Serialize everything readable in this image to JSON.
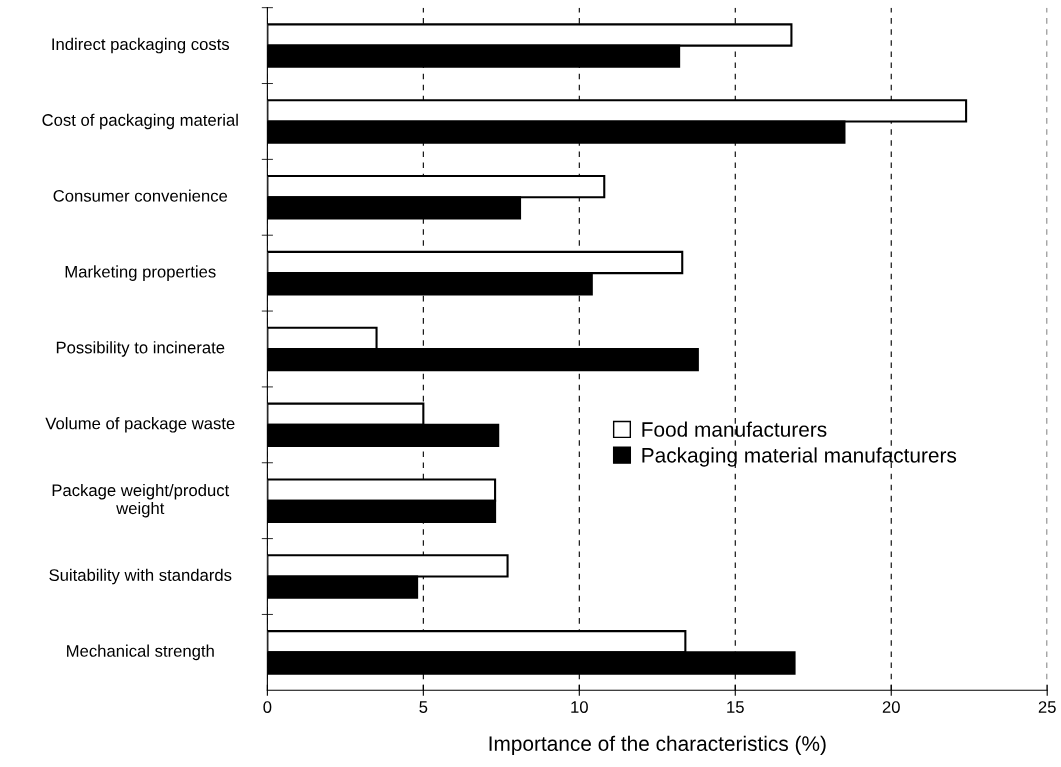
{
  "chart_data": {
    "type": "bar",
    "orientation": "horizontal",
    "xlabel": "Importance of the characteristics (%)",
    "categories": [
      "Indirect packaging costs",
      "Cost of packaging material",
      "Consumer convenience",
      "Marketing properties",
      "Possibility to incinerate",
      "Volume of package waste",
      "Package weight/product\nweight",
      "Suitability with standards",
      "Mechanical strength"
    ],
    "series": [
      {
        "name": "Food manufacturers",
        "color": "#ffffff",
        "values": [
          16.8,
          22.4,
          10.8,
          13.3,
          3.5,
          5.0,
          7.3,
          7.7,
          13.4
        ]
      },
      {
        "name": "Packaging material manufacturers",
        "color": "#000000",
        "values": [
          13.2,
          18.5,
          8.1,
          10.4,
          13.8,
          7.4,
          7.3,
          4.8,
          16.9
        ]
      }
    ],
    "xlim": [
      0,
      25
    ],
    "xticks": [
      0,
      5,
      10,
      15,
      20,
      25
    ],
    "grid": "x",
    "legend": "right"
  }
}
